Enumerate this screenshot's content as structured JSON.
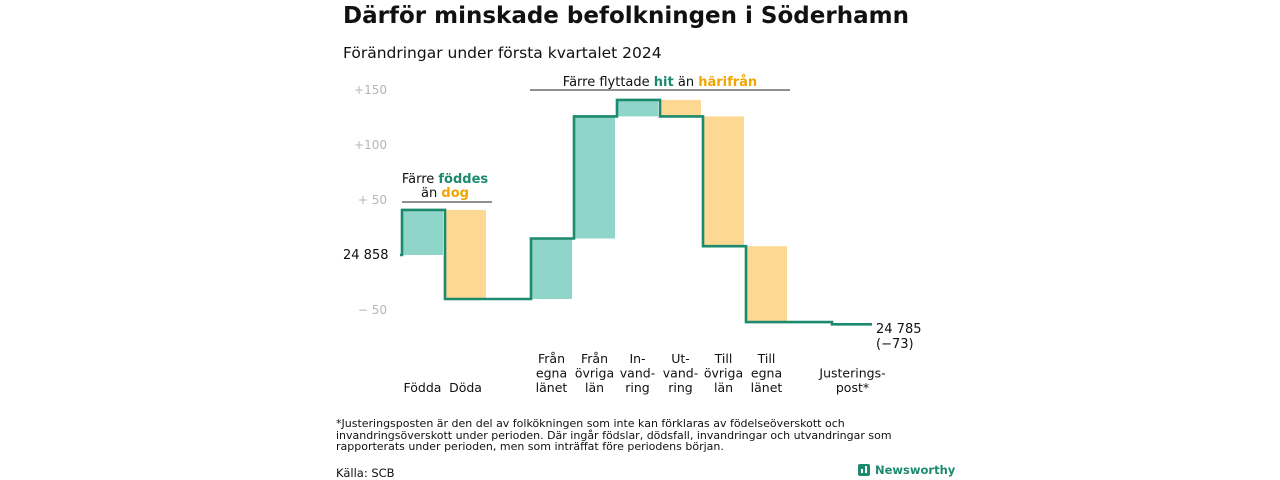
{
  "title": "Därför minskade befolkningen i Söderhamn",
  "subtitle": "Förändringar under första kvartalet 2024",
  "chart_data": {
    "type": "waterfall",
    "start_value": 24858,
    "start_label": "24  858",
    "end_value": 24785,
    "end_label_value": "24 785",
    "end_label_change": "(−73)",
    "y_axis_unit": "change vs start",
    "ylim": [
      -80,
      165
    ],
    "y_ticks": [
      {
        "value": 150,
        "label": "+150"
      },
      {
        "value": 100,
        "label": "+100"
      },
      {
        "value": 50,
        "label": "+  50"
      },
      {
        "value": -50,
        "label": "−  50"
      }
    ],
    "steps": [
      {
        "label": "Födda",
        "lines": [
          "Födda"
        ],
        "value": 41,
        "kind": "in"
      },
      {
        "label": "Döda",
        "lines": [
          "Döda"
        ],
        "value": -81,
        "kind": "out"
      },
      {
        "label": "Från egna länet",
        "lines": [
          "Från",
          "egna",
          "länet"
        ],
        "value": 55,
        "kind": "in"
      },
      {
        "label": "Från övriga län",
        "lines": [
          "Från",
          "övriga",
          "län"
        ],
        "value": 111,
        "kind": "in"
      },
      {
        "label": "In-vandring",
        "lines": [
          "In-",
          "vand-",
          "ring"
        ],
        "value": 15,
        "kind": "in"
      },
      {
        "label": "Ut-vandring",
        "lines": [
          "Ut-",
          "vand-",
          "ring"
        ],
        "value": -15,
        "kind": "out"
      },
      {
        "label": "Till övriga län",
        "lines": [
          "Till",
          "övriga",
          "län"
        ],
        "value": -118,
        "kind": "out"
      },
      {
        "label": "Till egna länet",
        "lines": [
          "Till",
          "egna",
          "länet"
        ],
        "value": -69,
        "kind": "out"
      },
      {
        "label": "Justerings-post*",
        "lines": [
          "Justerings-",
          "post*"
        ],
        "value": -2,
        "kind": "adjust"
      }
    ],
    "annotations": {
      "births": {
        "prefix": "Färre",
        "highlight1": "föddes",
        "middle": "än",
        "highlight2": "dog"
      },
      "migration": {
        "prefix": "Färre flyttade",
        "highlight1": "hit",
        "middle": "än",
        "highlight2": "härifrån"
      }
    },
    "colors": {
      "in_fill": "#8fd5ca",
      "out_fill": "#fcd892",
      "line": "#1c8a6e",
      "in_text": "#1c8a6e",
      "out_text": "#f0a500",
      "axis_text": "#b5b5b5"
    }
  },
  "footnote": "*Justeringsposten är den del av folkökningen som inte kan förklaras av födelseöverskott och invandringsöverskott under perioden. Där ingår födslar, dödsfall, invandringar och utvandringar som rapporterats under perioden, men som inträffat före periodens början.",
  "source": "Källa: SCB",
  "brand": {
    "name": "Newsworthy",
    "icon": "bar-chart-icon"
  }
}
